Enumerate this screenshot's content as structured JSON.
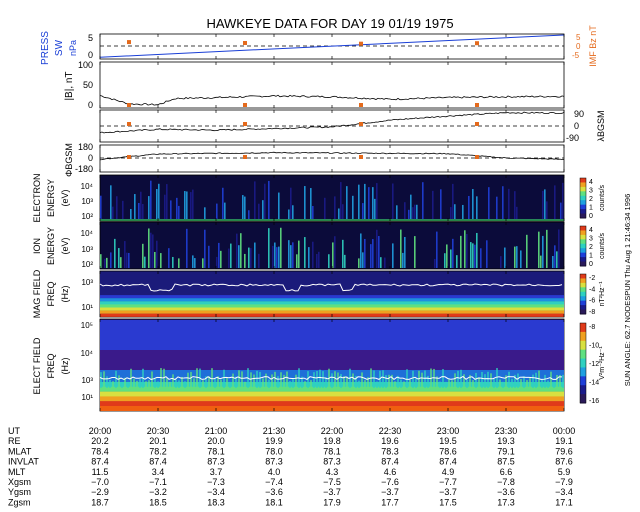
{
  "title": "HAWKEYE DATA FOR DAY  19 01/19 1975",
  "side_text": "SUN ANGLE:  62.7 NODESPUN   Thu Aug  1 21:46:34 1996",
  "colors": {
    "blue": "#1a3fd6",
    "orange": "#e46a1c",
    "bg": "#ffffff",
    "ink": "#000000"
  },
  "panels": [
    {
      "id": "press",
      "left_label": "PRESS",
      "left_sub": "SW",
      "unit": "nPa",
      "ticks": [
        "5",
        "0"
      ],
      "right_label": "IMF Bz nT",
      "right_ticks": [
        "5",
        "0",
        "-5"
      ]
    },
    {
      "id": "b",
      "left_label": "|B|, nT",
      "ticks": [
        "100",
        "50",
        "0"
      ]
    },
    {
      "id": "lat",
      "right_label": "λBGSM",
      "right_ticks": [
        "90",
        "0",
        "-90"
      ]
    },
    {
      "id": "phi",
      "left_label": "ΦBGSM",
      "ticks": [
        "180",
        "0",
        "-180"
      ]
    },
    {
      "id": "electron",
      "left_label": "ELECTRON",
      "left_sub": "ENERGY",
      "unit": "(eV)",
      "ticks": [
        "10⁴",
        "10³",
        "10²"
      ],
      "cbar_ticks": [
        "4",
        "3",
        "2",
        "1",
        "0"
      ],
      "cbar_label": "counts/s"
    },
    {
      "id": "ion",
      "left_label": "ION",
      "left_sub": "ENERGY",
      "unit": "(eV)",
      "ticks": [
        "10⁴",
        "10³",
        "10²"
      ],
      "cbar_ticks": [
        "4",
        "3",
        "2",
        "1",
        "0"
      ],
      "cbar_label": "counts/s"
    },
    {
      "id": "mag",
      "left_label": "MAG FIELD",
      "left_sub": "FREQ",
      "unit": "(Hz)",
      "ticks": [
        "10³",
        "10¹"
      ],
      "cbar_ticks": [
        "-2",
        "-4",
        "-6",
        "-8"
      ],
      "cbar_label": "nT²Hz⁻¹"
    },
    {
      "id": "elect",
      "left_label": "ELECT FIELD",
      "left_sub": "FREQ",
      "unit": "(Hz)",
      "ticks": [
        "10⁵",
        "10⁴",
        "10³",
        "10¹"
      ],
      "cbar_ticks": [
        "-8",
        "-10",
        "-12",
        "-14",
        "-16"
      ],
      "cbar_label": "V²m⁻²Hz⁻¹"
    }
  ],
  "chart_data": {
    "type": "line",
    "title": "HAWKEYE DATA FOR DAY  19 01/19 1975",
    "x_ticks": [
      "20:00",
      "20:30",
      "21:00",
      "21:30",
      "22:00",
      "22:30",
      "23:00",
      "23:30",
      "00:00"
    ],
    "pressure_nPa": {
      "x": [
        0,
        8
      ],
      "y": [
        0.2,
        6.0
      ]
    },
    "imf_bz_nT": {
      "x": [
        0.5,
        2.5,
        4.5,
        6.5
      ],
      "y": [
        4.8,
        2.5,
        0.8,
        2.0
      ]
    },
    "b_magnitude_nT": {
      "x": [
        0,
        0.25,
        0.5,
        1.0,
        1.3,
        2.0,
        3.0,
        4.0,
        5.0,
        6.0,
        7.0,
        8.0
      ],
      "y": [
        25,
        15,
        5,
        3,
        18,
        20,
        24,
        22,
        16,
        20,
        22,
        23
      ]
    },
    "lambda_b_gsm_deg": {
      "x": [
        0,
        1,
        2,
        3,
        4,
        5,
        6,
        7,
        8
      ],
      "y": [
        -40,
        -20,
        -25,
        -15,
        -5,
        35,
        60,
        80,
        78
      ]
    },
    "phi_b_gsm_deg": {
      "x": [
        0,
        1,
        2,
        3,
        4,
        5,
        6,
        7,
        8
      ],
      "y": [
        -20,
        60,
        70,
        80,
        75,
        70,
        65,
        0,
        -20
      ]
    }
  },
  "ephemeris": {
    "labels": [
      "UT",
      "RE",
      "MLAT",
      "INVLAT",
      "MLT",
      "Xgsm",
      "Ygsm",
      "Zgsm"
    ],
    "rows": [
      [
        "20:00",
        "20:30",
        "21:00",
        "21:30",
        "22:00",
        "22:30",
        "23:00",
        "23:30",
        "00:00"
      ],
      [
        "20.2",
        "20.1",
        "20.0",
        "19.9",
        "19.8",
        "19.6",
        "19.5",
        "19.3",
        "19.1"
      ],
      [
        "78.4",
        "78.2",
        "78.1",
        "78.0",
        "78.1",
        "78.3",
        "78.6",
        "79.1",
        "79.6"
      ],
      [
        "87.4",
        "87.4",
        "87.3",
        "87.3",
        "87.3",
        "87.4",
        "87.4",
        "87.5",
        "87.6"
      ],
      [
        "11.5",
        "3.4",
        "3.7",
        "4.0",
        "4.3",
        "4.6",
        "4.9",
        "6.6",
        "5.9"
      ],
      [
        "−7.0",
        "−7.1",
        "−7.3",
        "−7.4",
        "−7.5",
        "−7.6",
        "−7.7",
        "−7.8",
        "−7.9"
      ],
      [
        "−2.9",
        "−3.2",
        "−3.4",
        "−3.6",
        "−3.7",
        "−3.7",
        "−3.7",
        "−3.6",
        "−3.4"
      ],
      [
        "18.7",
        "18.5",
        "18.3",
        "18.1",
        "17.9",
        "17.7",
        "17.5",
        "17.3",
        "17.1"
      ]
    ]
  }
}
